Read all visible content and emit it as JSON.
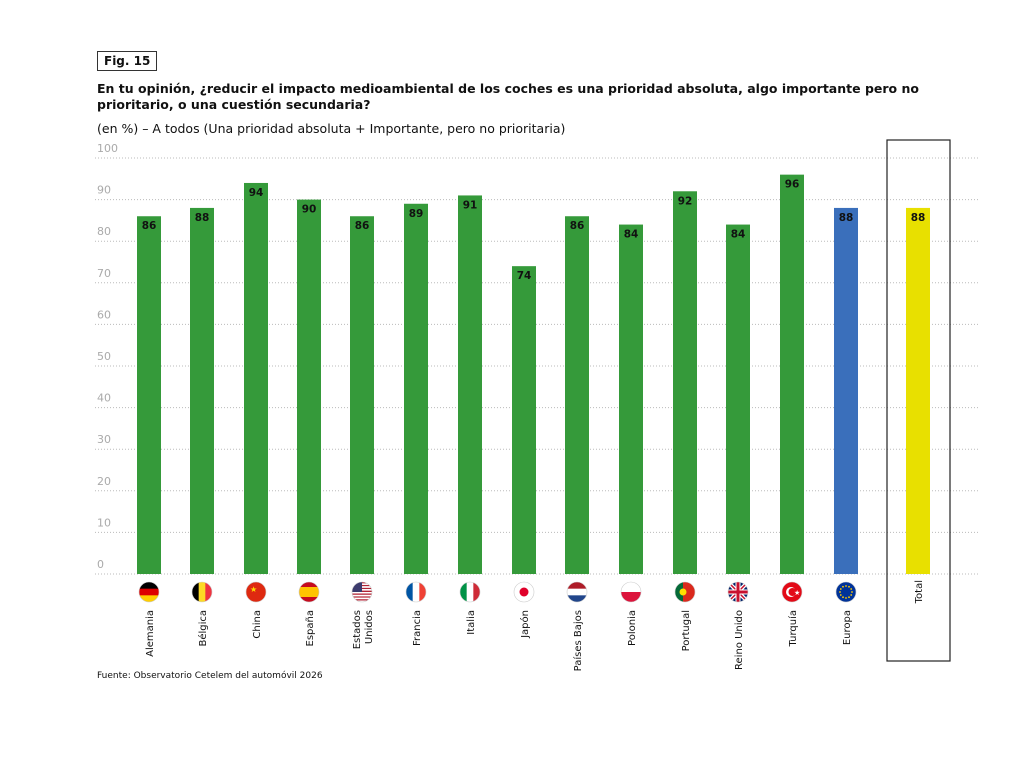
{
  "fig_label": "Fig. 15",
  "chart_data": {
    "type": "bar",
    "title": "En tu opinión, ¿reducir el impacto medioambiental de los coches es una prioridad absoluta, algo importante pero no prioritario, o una cuestión secundaria?",
    "subtitle": "(en %) – A todos (Una prioridad absoluta + Importante, pero no prioritaria)",
    "xlabel": "",
    "ylabel": "",
    "ylim": [
      0,
      100
    ],
    "yticks": [
      0,
      10,
      20,
      30,
      40,
      50,
      60,
      70,
      80,
      90,
      100
    ],
    "grid": true,
    "categories": [
      "Alemania",
      "Bélgica",
      "China",
      "España",
      "Estados Unidos",
      "Francia",
      "Italia",
      "Japón",
      "Países Bajos",
      "Polonia",
      "Portugal",
      "Reino Unido",
      "Turquía",
      "Europa",
      "Total"
    ],
    "values": [
      86,
      88,
      94,
      90,
      86,
      89,
      91,
      74,
      86,
      84,
      92,
      84,
      96,
      88,
      88
    ],
    "flags": [
      "de",
      "be",
      "cn",
      "es",
      "us",
      "fr",
      "it",
      "jp",
      "nl",
      "pl",
      "pt",
      "gb",
      "tr",
      "eu",
      ""
    ],
    "colors": {
      "country": "#359a3a",
      "europe": "#3a6fbb",
      "total": "#e8e000"
    }
  },
  "source": "Fuente: Observatorio Cetelem del automóvil 2026"
}
